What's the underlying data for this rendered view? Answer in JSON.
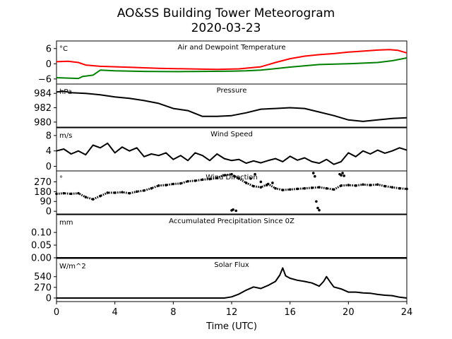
{
  "figure": {
    "title_line1": "AO&SS Building Tower Meteorogram",
    "title_line2": "2020-03-23",
    "xlabel": "Time (UTC)",
    "xticks": [
      "0",
      "4",
      "8",
      "12",
      "16",
      "20",
      "24"
    ]
  },
  "chart_data": [
    {
      "type": "line",
      "title": "Air and Dewpoint Temperature",
      "unit": "°C",
      "xlim": [
        0,
        24
      ],
      "ylim": [
        -8,
        9
      ],
      "yticks": [
        6,
        0,
        -6
      ],
      "ytick_labels": [
        "6",
        "0",
        "−6"
      ],
      "series": [
        {
          "name": "",
          "color": "#ff0000",
          "x": [
            0,
            0.8,
            1.5,
            2.0,
            3.0,
            5.0,
            7.0,
            9.0,
            11.0,
            12.5,
            14.0,
            15.0,
            16.0,
            17.0,
            18.0,
            19.0,
            20.0,
            21.0,
            22.0,
            22.8,
            23.4,
            24.0
          ],
          "y": [
            0.8,
            1.0,
            0.5,
            -0.5,
            -1.0,
            -1.4,
            -1.8,
            -2.0,
            -2.2,
            -2.0,
            -1.2,
            0.5,
            2.0,
            3.0,
            3.6,
            4.0,
            4.6,
            5.0,
            5.4,
            5.6,
            5.3,
            4.3
          ]
        },
        {
          "name": "",
          "color": "#008000",
          "x": [
            0,
            1.5,
            1.8,
            2.5,
            3.0,
            4.0,
            6.0,
            8.0,
            10.0,
            12.0,
            13.0,
            14.0,
            16.0,
            18.0,
            20.0,
            22.0,
            23.0,
            24.0
          ],
          "y": [
            -5.5,
            -5.8,
            -5.0,
            -4.5,
            -2.5,
            -2.8,
            -3.0,
            -3.1,
            -3.0,
            -2.9,
            -2.8,
            -2.5,
            -1.3,
            -0.3,
            0.0,
            0.5,
            1.2,
            2.3
          ]
        }
      ]
    },
    {
      "type": "line",
      "title": "Pressure",
      "unit": "hPa",
      "xlim": [
        0,
        24
      ],
      "ylim": [
        979.3,
        985.3
      ],
      "yticks": [
        984,
        982,
        980
      ],
      "ytick_labels": [
        "984",
        "982",
        "980"
      ],
      "series": [
        {
          "name": "",
          "color": "#000000",
          "x": [
            0,
            0.5,
            1.0,
            2.0,
            3.0,
            4.0,
            5.0,
            6.0,
            7.0,
            8.0,
            9.0,
            9.5,
            10.0,
            11.0,
            12.0,
            13.0,
            14.0,
            15.0,
            16.0,
            17.0,
            18.0,
            19.0,
            20.0,
            21.0,
            22.0,
            23.0,
            24.0
          ],
          "y": [
            984.2,
            984.3,
            984.1,
            984.0,
            983.8,
            983.5,
            983.3,
            983.0,
            982.6,
            981.9,
            981.6,
            981.2,
            980.8,
            980.8,
            980.9,
            981.3,
            981.8,
            981.9,
            982.0,
            981.9,
            981.4,
            980.9,
            980.3,
            980.1,
            980.3,
            980.5,
            980.6
          ]
        }
      ]
    },
    {
      "type": "line",
      "title": "Wind Speed",
      "unit": "m/s",
      "xlim": [
        0,
        24
      ],
      "ylim": [
        -1.2,
        10
      ],
      "yticks": [
        8,
        4,
        0
      ],
      "ytick_labels": [
        "8",
        "4",
        "0"
      ],
      "series": [
        {
          "name": "",
          "color": "#000000",
          "x": [
            0,
            0.5,
            1.0,
            1.5,
            2.0,
            2.5,
            3.0,
            3.5,
            4.0,
            4.5,
            5.0,
            5.5,
            6.0,
            6.5,
            7.0,
            7.5,
            8.0,
            8.5,
            9.0,
            9.5,
            10.0,
            10.5,
            11.0,
            11.5,
            12.0,
            12.5,
            13.0,
            13.5,
            14.0,
            14.5,
            15.0,
            15.5,
            16.0,
            16.5,
            17.0,
            17.5,
            18.0,
            18.5,
            19.0,
            19.5,
            20.0,
            20.5,
            21.0,
            21.5,
            22.0,
            22.5,
            23.0,
            23.5,
            24.0
          ],
          "y": [
            4.0,
            4.5,
            3.2,
            4.0,
            3.0,
            5.5,
            4.8,
            6.0,
            3.5,
            5.0,
            4.0,
            4.8,
            2.5,
            3.2,
            2.8,
            3.5,
            1.8,
            2.8,
            1.5,
            3.5,
            2.8,
            1.5,
            3.2,
            2.0,
            1.5,
            1.8,
            0.8,
            1.4,
            0.9,
            1.5,
            2.0,
            1.2,
            2.6,
            1.6,
            2.2,
            1.2,
            0.8,
            1.8,
            0.5,
            1.2,
            3.5,
            2.5,
            4.0,
            3.2,
            4.2,
            3.4,
            4.0,
            4.8,
            4.2
          ]
        }
      ]
    },
    {
      "type": "scatter",
      "title": "Wind Direction",
      "unit": "°",
      "xlim": [
        0,
        24
      ],
      "ylim": [
        -25,
        370
      ],
      "yticks": [
        270,
        180,
        90,
        0
      ],
      "ytick_labels": [
        "270",
        "180",
        "90",
        "0"
      ],
      "series": [
        {
          "name": "",
          "color": "#000000",
          "x": [
            0,
            0.5,
            1.0,
            1.5,
            2.0,
            2.5,
            3.0,
            3.5,
            4.0,
            4.5,
            5.0,
            5.5,
            6.0,
            6.5,
            7.0,
            7.5,
            8.0,
            8.5,
            9.0,
            9.5,
            10.0,
            10.5,
            11.0,
            11.5,
            12.0,
            12.2,
            12.5,
            13.0,
            13.5,
            14.0,
            14.5,
            15.0,
            15.5,
            16.0,
            16.5,
            17.0,
            17.5,
            18.0,
            18.5,
            19.0,
            19.5,
            20.0,
            20.5,
            21.0,
            21.5,
            22.0,
            22.5,
            23.0,
            23.5,
            24.0
          ],
          "y": [
            160,
            165,
            160,
            165,
            130,
            110,
            140,
            170,
            170,
            175,
            165,
            180,
            190,
            210,
            235,
            240,
            250,
            255,
            275,
            280,
            290,
            295,
            305,
            330,
            340,
            320,
            300,
            260,
            230,
            220,
            250,
            210,
            195,
            200,
            205,
            210,
            215,
            220,
            210,
            200,
            235,
            240,
            235,
            245,
            240,
            245,
            230,
            220,
            210,
            205
          ]
        },
        {
          "name": "",
          "color": "#000000",
          "x": [
            12.0,
            12.1,
            12.3,
            13.3,
            13.6,
            14.0,
            14.4,
            14.8,
            17.6,
            17.7,
            17.8,
            17.9,
            18.0,
            19.4,
            19.5,
            19.6,
            19.7
          ],
          "y": [
            8,
            15,
            5,
            300,
            340,
            270,
            240,
            260,
            350,
            320,
            90,
            30,
            10,
            340,
            330,
            350,
            325
          ]
        }
      ]
    },
    {
      "type": "line",
      "title": "Accumulated Precipitation Since 0Z",
      "unit": "mm",
      "xlim": [
        0,
        24
      ],
      "ylim": [
        0,
        0.17
      ],
      "yticks": [
        0.1,
        0.05,
        0.0
      ],
      "ytick_labels": [
        "0.10",
        "0.05",
        "0.00"
      ],
      "series": [
        {
          "name": "",
          "color": "#000000",
          "x": [
            0,
            24
          ],
          "y": [
            0,
            0
          ]
        }
      ]
    },
    {
      "type": "line",
      "title": "Solar Flux",
      "unit": "W/m^2",
      "xlim": [
        0,
        24
      ],
      "ylim": [
        -90,
        1000
      ],
      "yticks": [
        540,
        270,
        0
      ],
      "ytick_labels": [
        "540",
        "270",
        "0"
      ],
      "series": [
        {
          "name": "",
          "color": "#000000",
          "x": [
            0,
            11.5,
            12.0,
            12.5,
            13.0,
            13.5,
            14.0,
            14.5,
            15.0,
            15.3,
            15.5,
            15.7,
            16.0,
            16.5,
            17.0,
            17.5,
            18.0,
            18.3,
            18.5,
            18.8,
            19.0,
            19.5,
            20.0,
            20.5,
            21.0,
            21.5,
            22.0,
            22.5,
            23.0,
            23.5,
            24.0
          ],
          "y": [
            0,
            0,
            30,
            100,
            200,
            280,
            240,
            320,
            420,
            580,
            760,
            560,
            500,
            450,
            420,
            380,
            300,
            420,
            540,
            380,
            280,
            230,
            150,
            150,
            130,
            120,
            90,
            70,
            60,
            20,
            0
          ]
        }
      ]
    }
  ]
}
